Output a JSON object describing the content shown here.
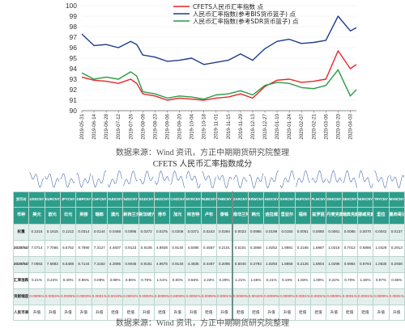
{
  "chart_data": {
    "type": "line",
    "y_ticks": [
      "90",
      "91",
      "92",
      "93",
      "94",
      "95",
      "96",
      "97",
      "98",
      "99",
      "100"
    ],
    "ylim": [
      90,
      100
    ],
    "x_ticks": [
      "2019-05-31",
      "2019-06-14",
      "2019-06-28",
      "2019-07-12",
      "2019-07-26",
      "2019-08-09",
      "2019-08-23",
      "2019-09-06",
      "2019-09-20",
      "2019-10-04",
      "2019-10-18",
      "2019-11-01",
      "2019-11-15",
      "2019-11-29",
      "2019-12-13",
      "2019-12-27",
      "2020-01-10",
      "2020-01-24",
      "2020-02-07",
      "2020-02-21",
      "2020-03-06",
      "2020-03-20",
      "2020-04-03"
    ],
    "x_last": "2020-04-10",
    "series": [
      {
        "name": "CFETS人民币汇率指数 点",
        "color": "#e8262a",
        "x": [
          "2019-05-31",
          "2019-06-14",
          "2019-06-28",
          "2019-07-12",
          "2019-07-26",
          "2019-08-02",
          "2019-08-09",
          "2019-08-23",
          "2019-09-06",
          "2019-09-20",
          "2019-10-04",
          "2019-10-18",
          "2019-11-01",
          "2019-11-15",
          "2019-11-29",
          "2019-12-13",
          "2019-12-27",
          "2020-01-10",
          "2020-01-24",
          "2020-02-07",
          "2020-02-21",
          "2020-03-06",
          "2020-03-20",
          "2020-04-03",
          "2020-04-10"
        ],
        "values": [
          93.2,
          92.9,
          92.8,
          92.6,
          93.0,
          92.6,
          91.6,
          91.4,
          91.0,
          91.2,
          91.1,
          91.0,
          91.2,
          91.3,
          91.6,
          91.2,
          92.3,
          92.9,
          93.0,
          92.7,
          92.8,
          93.0,
          95.7,
          94.0,
          94.4
        ]
      },
      {
        "name": "人民币汇率指数(参考BIS货币篮子) 点",
        "color": "#1f3b8c",
        "x": [
          "2019-05-31",
          "2019-06-14",
          "2019-06-28",
          "2019-07-12",
          "2019-07-26",
          "2019-08-02",
          "2019-08-09",
          "2019-08-23",
          "2019-09-06",
          "2019-09-20",
          "2019-10-04",
          "2019-10-18",
          "2019-11-01",
          "2019-11-15",
          "2019-11-29",
          "2019-12-13",
          "2019-12-27",
          "2020-01-10",
          "2020-01-24",
          "2020-02-07",
          "2020-02-21",
          "2020-03-06",
          "2020-03-20",
          "2020-04-03",
          "2020-04-10"
        ],
        "values": [
          97.3,
          96.2,
          96.3,
          96.0,
          96.6,
          96.3,
          95.3,
          95.1,
          94.7,
          94.8,
          95.0,
          94.4,
          94.6,
          94.8,
          95.4,
          94.8,
          95.9,
          96.6,
          96.8,
          96.4,
          96.5,
          96.7,
          99.0,
          97.6,
          97.9
        ]
      },
      {
        "name": "人民币汇率指数(参考SDR货币篮子) 点",
        "color": "#2a9a46",
        "x": [
          "2019-05-31",
          "2019-06-14",
          "2019-06-28",
          "2019-07-12",
          "2019-07-26",
          "2019-08-02",
          "2019-08-09",
          "2019-08-23",
          "2019-09-06",
          "2019-09-20",
          "2019-10-04",
          "2019-10-18",
          "2019-11-01",
          "2019-11-15",
          "2019-11-29",
          "2019-12-13",
          "2019-12-27",
          "2020-01-10",
          "2020-01-24",
          "2020-02-07",
          "2020-02-21",
          "2020-03-06",
          "2020-03-20",
          "2020-04-03",
          "2020-04-10"
        ],
        "values": [
          93.6,
          93.0,
          93.2,
          93.0,
          93.7,
          93.3,
          91.8,
          91.6,
          91.2,
          91.4,
          91.3,
          91.1,
          91.5,
          91.6,
          91.9,
          91.5,
          92.4,
          92.7,
          92.6,
          92.2,
          92.1,
          92.4,
          93.9,
          91.4,
          92.0
        ]
      }
    ]
  },
  "source_note_1": "数据来源：Wind 资讯，方正中期期货研究院整理",
  "table_title": "CFETS 人民币汇率指数成分",
  "source_note_2": "数据来源：Wind 资讯，方正中期期货研究院整理",
  "table": {
    "codes_label": "货币对",
    "codes": [
      "USDCNY",
      "EURCNY",
      "JPYCNY",
      "GBPCNY",
      "CHFCNY",
      "AUDCNY",
      "NZDCNY",
      "SGDCNY",
      "HKDCNY",
      "CADCNY",
      "MYRCNY",
      "RUBCNY",
      "THBCNY",
      "ZARCNY",
      "KRWCNY",
      "AEDCNY",
      "SARCNY",
      "HUFCNY",
      "PLNCNY",
      "DKKCNY",
      "SEKCNY",
      "NOKCNY",
      "TRYCNY",
      "MXNCNY"
    ],
    "names_label": "币种",
    "names": [
      "美元",
      "欧元",
      "日元",
      "英镑",
      "瑞郎",
      "澳元",
      "新西兰元",
      "新加坡元",
      "港币",
      "加元",
      "林吉特",
      "卢布",
      "泰铢",
      "南非兰特",
      "韩元",
      "迪拉姆",
      "里亚尔",
      "福林",
      "兹罗提",
      "丹麦克朗",
      "瑞典克朗",
      "挪威克朗",
      "里拉",
      "墨西哥比索"
    ],
    "rows": [
      {
        "label": "权重",
        "cells": [
          "0.2216",
          "0.1815",
          "0.1212",
          "0.0314",
          "0.0144",
          "0.0468",
          "0.0095",
          "0.0372",
          "0.0375",
          "0.0208",
          "0.0371",
          "0.0243",
          "0.0294",
          "0.0023",
          "0.0985",
          "0.0199",
          "0.0150",
          "0.0051",
          "0.0080",
          "0.0061",
          "0.0085",
          "0.0070",
          "0.0042",
          "0.0137"
        ]
      },
      {
        "label": "2020/04/10",
        "cells": [
          "7.0714",
          "7.7065",
          "6.5752",
          "8.7980",
          "7.3127",
          "4.4607",
          "0.9123",
          "0.9108",
          "4.8938",
          "0.9140",
          "4.5086",
          "0.4587",
          "0.2101",
          "0.5101",
          "0.3856",
          "1.9252",
          "1.8891",
          "0.2165",
          "1.6987",
          "1.0318",
          "0.7013",
          "0.6886",
          "1.0428",
          "0.2913"
        ]
      },
      {
        "label": "2020/04/03",
        "cells": [
          "7.0863",
          "7.6883",
          "6.5488",
          "8.7144",
          "7.3192",
          "4.2896",
          "0.9045",
          "0.9181",
          "4.9676",
          "0.9140",
          "4.4835",
          "0.4487",
          "0.2095",
          "0.5040",
          "0.3793",
          "1.9293",
          "1.8856",
          "0.2126",
          "1.6804",
          "1.0295",
          "0.6964",
          "0.6784",
          "1.0530",
          "0.2938"
        ]
      },
      {
        "label": "汇率涨跌幅",
        "cells": [
          "0.21%",
          "0.24%",
          "0.40%",
          "0.96%",
          "0.09%",
          "3.99%",
          "0.86%",
          "0.79%",
          "1.51%",
          "0.00%",
          "0.56%",
          "2.23%",
          "0.29%",
          "1.21%",
          "1.66%",
          "0.21%",
          "0.19%",
          "1.83%",
          "1.09%",
          "0.22%",
          "0.70%",
          "1.50%",
          "0.97%",
          "0.85%"
        ]
      },
      {
        "label": "贡献幅度",
        "cells": [
          "0.0005%",
          "0.0004%",
          "0.0005%",
          "0.0003%",
          "0.0001%",
          "0.0019%",
          "0.0001%",
          "0.0003%",
          "0.0006%",
          "0.0000%",
          "0.0002%",
          "0.0005%",
          "0.0001%",
          "0.0000%",
          "0.0016%",
          "0.0000%",
          "0.0000%",
          "0.0001%",
          "0.0001%",
          "0.0000%",
          "0.0001%",
          "0.0001%",
          "0.0000%",
          "0.0001%"
        ]
      },
      {
        "label": "人民币表现",
        "cells": [
          "升值",
          "升值",
          "升值",
          "升值",
          "升值",
          "贬值",
          "贬值",
          "升值",
          "贬值",
          "升值",
          "升值",
          "贬值",
          "升值",
          "贬值",
          "贬值",
          "升值",
          "升值",
          "贬值",
          "贬值",
          "升值",
          "贬值",
          "贬值",
          "升值",
          "升值"
        ]
      }
    ]
  }
}
